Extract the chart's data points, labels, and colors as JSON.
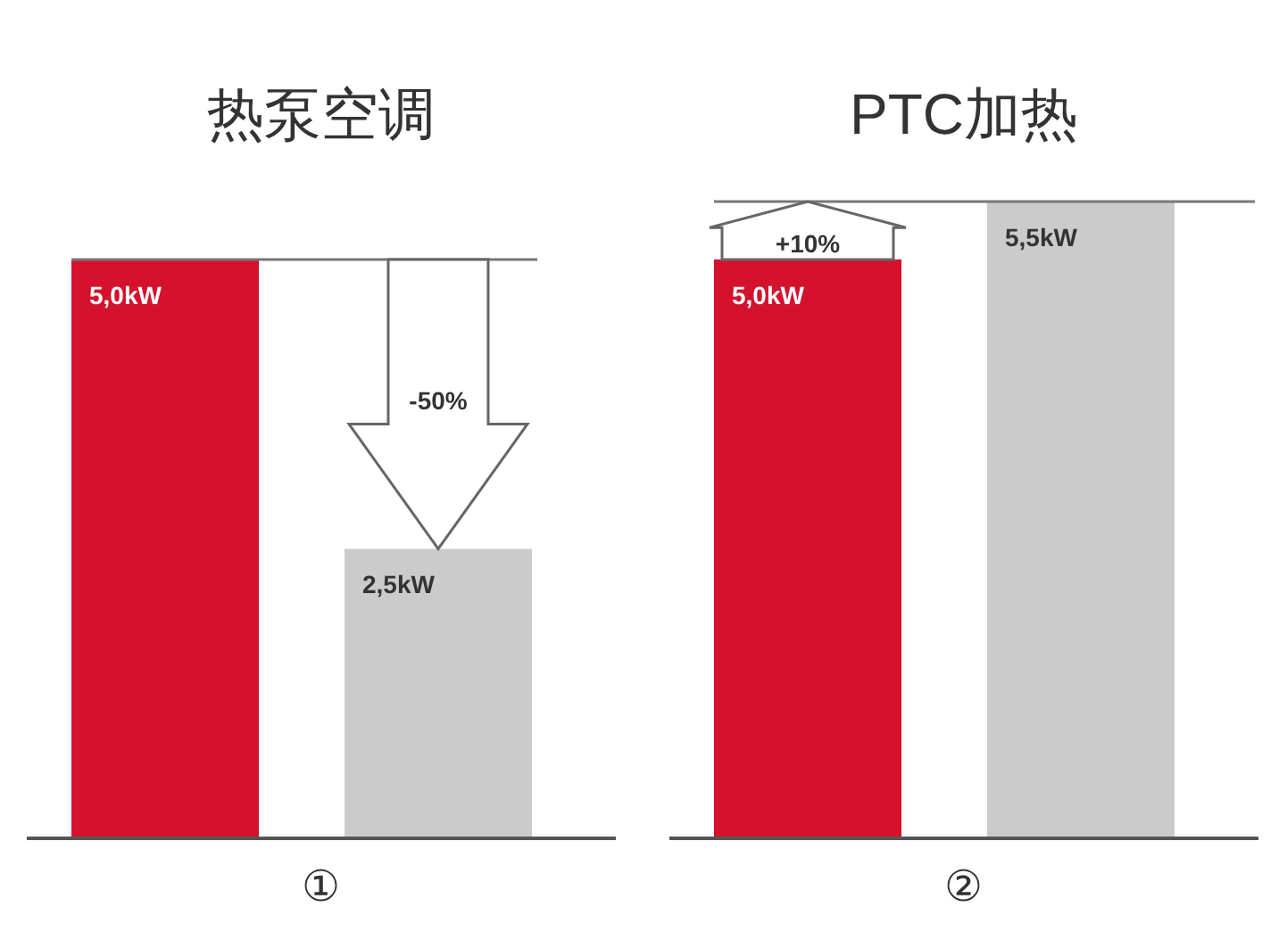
{
  "chart_data": [
    {
      "type": "bar",
      "title": "热泵空调",
      "categories": [
        null,
        null
      ],
      "values": [
        5.0,
        2.5
      ],
      "colors": [
        "#d4122d",
        "#cbcbcb"
      ],
      "value_labels": [
        "5,0kW",
        "2,5kW"
      ],
      "annotations": [
        "-50%"
      ],
      "ref_lines": [
        {
          "axis": "y",
          "value": 5.0
        }
      ],
      "xlabel": "①"
    },
    {
      "type": "bar",
      "title": "PTC加热",
      "categories": [
        null,
        null
      ],
      "values": [
        5.0,
        5.5
      ],
      "colors": [
        "#d4122d",
        "#cbcbcb"
      ],
      "value_labels": [
        "5,0kW",
        "5,5kW"
      ],
      "annotations": [
        "+10%"
      ],
      "ref_lines": [
        {
          "axis": "y",
          "value": 5.5
        }
      ],
      "xlabel": "②"
    }
  ]
}
